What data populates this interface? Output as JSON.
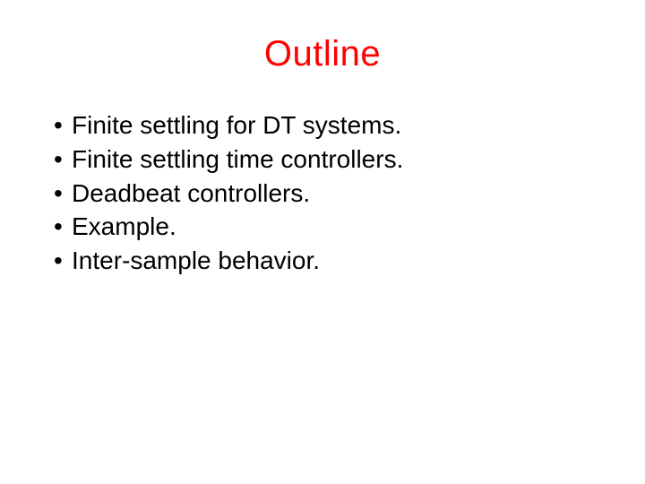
{
  "slide": {
    "title": "Outline",
    "title_color": "#ff0000",
    "title_fontsize": 40,
    "body_fontsize": 28,
    "body_color": "#000000",
    "background_color": "#ffffff",
    "bullets": [
      "Finite settling for DT systems.",
      "Finite settling time controllers.",
      "Deadbeat controllers.",
      "Example.",
      "Inter-sample behavior."
    ]
  }
}
